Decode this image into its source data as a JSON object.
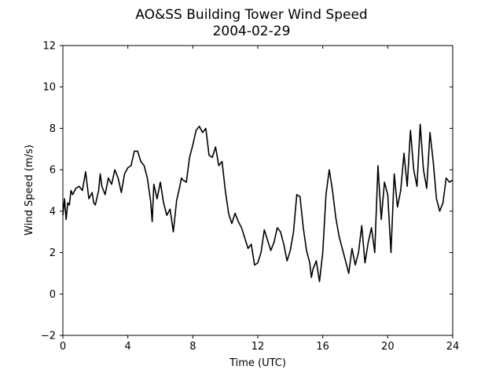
{
  "chart_data": {
    "type": "line",
    "title": "AO&SS Building Tower Wind Speed",
    "subtitle": "2004-02-29",
    "xlabel": "Time (UTC)",
    "ylabel": "Wind Speed (m/s)",
    "xlim": [
      0,
      24
    ],
    "ylim": [
      -2,
      12
    ],
    "xticks": [
      0,
      4,
      8,
      12,
      16,
      20,
      24
    ],
    "yticks": [
      -2,
      0,
      2,
      4,
      6,
      8,
      10,
      12
    ],
    "grid": false,
    "line_color": "#000000",
    "series": [
      {
        "x": [
          0,
          0.1,
          0.2,
          0.3,
          0.4,
          0.5,
          0.6,
          0.8,
          1.0,
          1.2,
          1.4,
          1.6,
          1.8,
          1.9,
          2.0,
          2.2,
          2.3,
          2.4,
          2.6,
          2.8,
          3.0,
          3.2,
          3.4,
          3.6,
          3.8,
          4.0,
          4.2,
          4.4,
          4.6,
          4.8,
          5.0,
          5.2,
          5.4,
          5.5,
          5.6,
          5.8,
          6.0,
          6.2,
          6.4,
          6.6,
          6.8,
          7.0,
          7.2,
          7.3,
          7.4,
          7.6,
          7.8,
          8.0,
          8.2,
          8.4,
          8.6,
          8.8,
          9.0,
          9.2,
          9.4,
          9.6,
          9.8,
          10.0,
          10.2,
          10.4,
          10.6,
          10.8,
          11.0,
          11.2,
          11.4,
          11.6,
          11.8,
          12.0,
          12.2,
          12.4,
          12.6,
          12.8,
          13.0,
          13.2,
          13.4,
          13.6,
          13.8,
          14.0,
          14.2,
          14.4,
          14.6,
          14.8,
          15.0,
          15.2,
          15.3,
          15.4,
          15.6,
          15.8,
          16.0,
          16.2,
          16.4,
          16.6,
          16.8,
          17.0,
          17.2,
          17.4,
          17.6,
          17.8,
          18.0,
          18.2,
          18.4,
          18.6,
          18.8,
          19.0,
          19.2,
          19.4,
          19.6,
          19.8,
          20.0,
          20.2,
          20.4,
          20.6,
          20.8,
          21.0,
          21.2,
          21.4,
          21.6,
          21.8,
          22.0,
          22.2,
          22.4,
          22.6,
          22.8,
          23.0,
          23.2,
          23.4,
          23.6,
          23.8,
          24.0
        ],
        "values": [
          3.8,
          4.6,
          3.6,
          4.4,
          4.3,
          5.0,
          4.8,
          5.1,
          5.2,
          5.0,
          5.9,
          4.6,
          4.9,
          4.4,
          4.3,
          5.0,
          5.8,
          5.2,
          4.8,
          5.6,
          5.3,
          6.0,
          5.6,
          4.9,
          5.8,
          6.1,
          6.2,
          6.9,
          6.9,
          6.4,
          6.2,
          5.6,
          4.5,
          3.5,
          5.3,
          4.6,
          5.4,
          4.4,
          3.8,
          4.1,
          3.0,
          4.5,
          5.2,
          5.6,
          5.5,
          5.4,
          6.6,
          7.2,
          7.9,
          8.1,
          7.8,
          8.0,
          6.7,
          6.6,
          7.1,
          6.2,
          6.4,
          5.0,
          3.9,
          3.4,
          3.9,
          3.5,
          3.2,
          2.7,
          2.2,
          2.4,
          1.4,
          1.5,
          2.0,
          3.1,
          2.6,
          2.1,
          2.5,
          3.2,
          3.0,
          2.4,
          1.6,
          2.1,
          3.0,
          4.8,
          4.7,
          3.2,
          2.1,
          1.5,
          0.8,
          1.2,
          1.6,
          0.6,
          2.0,
          4.8,
          6.0,
          5.0,
          3.7,
          2.8,
          2.2,
          1.6,
          1.0,
          2.2,
          1.4,
          2.0,
          3.3,
          1.5,
          2.5,
          3.2,
          2.0,
          6.2,
          3.6,
          5.4,
          4.8,
          2.0,
          5.8,
          4.2,
          5.0,
          6.8,
          5.2,
          7.9,
          6.0,
          5.2,
          8.2,
          6.0,
          5.1,
          7.8,
          6.4,
          4.6,
          4.0,
          4.4,
          5.6,
          5.4,
          5.5
        ]
      }
    ]
  }
}
